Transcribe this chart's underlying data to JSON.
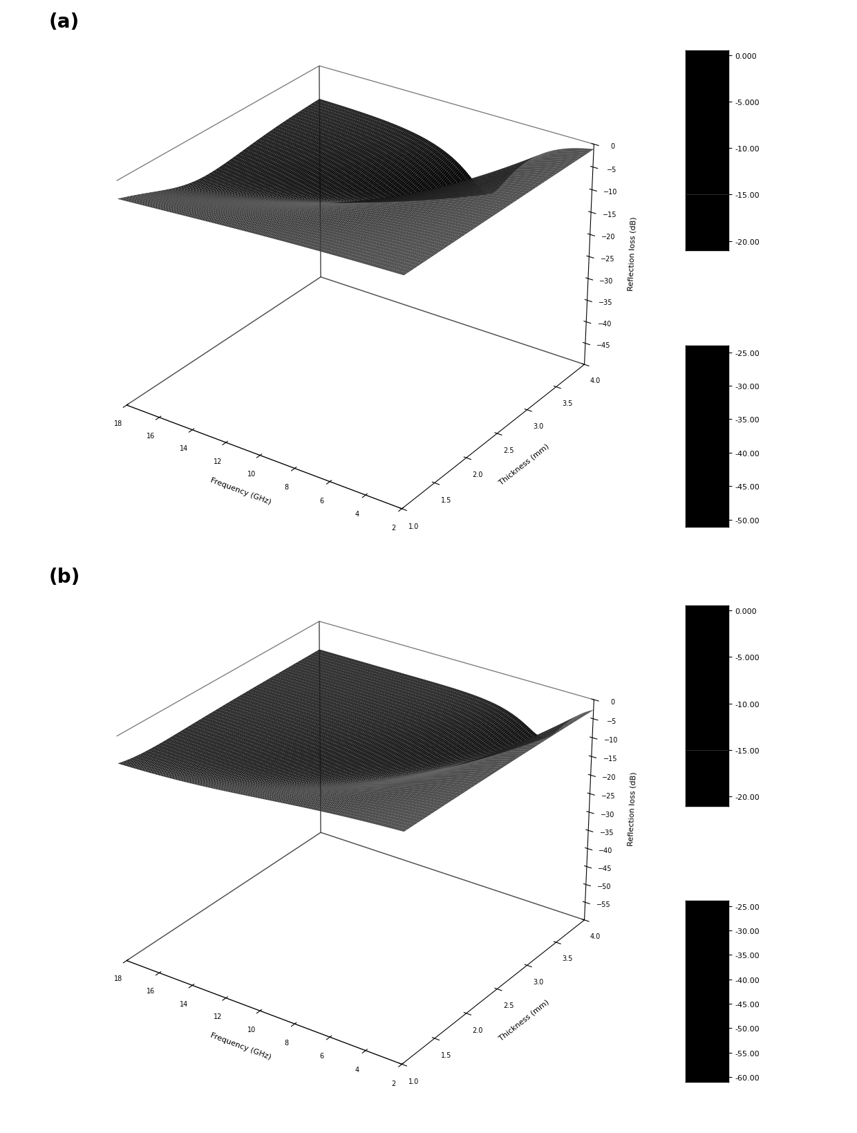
{
  "freq_min": 2,
  "freq_max": 18,
  "freq_steps": 200,
  "thick_min": 1.0,
  "thick_max": 4.0,
  "thick_steps": 60,
  "plot_a": {
    "zlim": [
      -50,
      0
    ],
    "zticks": [
      0,
      -5,
      -10,
      -15,
      -20,
      -25,
      -30,
      -35,
      -40,
      -45
    ],
    "zlabel": "Reflection loss (dB)",
    "colorbar_ticks": [
      0.0,
      -5.0,
      -10.0,
      -15.0,
      -20.0,
      -25.0,
      -30.0,
      -35.0,
      -40.0,
      -45.0,
      -50.0
    ],
    "colorbar_labels": [
      "0.000",
      "-5.000",
      "-10.00",
      "-15.00",
      "-20.00",
      "-25.00",
      "-30.00",
      "-35.00",
      "-40.00",
      "-45.00",
      "-50.00"
    ],
    "label": "(a)",
    "elev": 28,
    "azim": -55
  },
  "plot_b": {
    "zlim": [
      -60,
      0
    ],
    "zticks": [
      0,
      -5,
      -10,
      -15,
      -20,
      -25,
      -30,
      -35,
      -40,
      -45,
      -50,
      -55
    ],
    "zlabel": "Reflection loss (dB)",
    "colorbar_ticks": [
      0.0,
      -5.0,
      -10.0,
      -15.0,
      -20.0,
      -25.0,
      -30.0,
      -35.0,
      -40.0,
      -45.0,
      -50.0,
      -55.0,
      -60.0
    ],
    "colorbar_labels": [
      "0.000",
      "-5.000",
      "-10.00",
      "-15.00",
      "-20.00",
      "-25.00",
      "-30.00",
      "-35.00",
      "-40.00",
      "-45.00",
      "-50.00",
      "-55.00",
      "-60.00"
    ],
    "label": "(b)",
    "elev": 28,
    "azim": -55
  },
  "xticks": [
    2,
    4,
    6,
    8,
    10,
    12,
    14,
    16,
    18
  ],
  "yticks": [
    1.0,
    1.5,
    2.0,
    2.5,
    3.0,
    3.5,
    4.0
  ],
  "xlabel": "Frequency (GHz)",
  "ylabel": "Thickness (mm)",
  "background_color": "#ffffff"
}
